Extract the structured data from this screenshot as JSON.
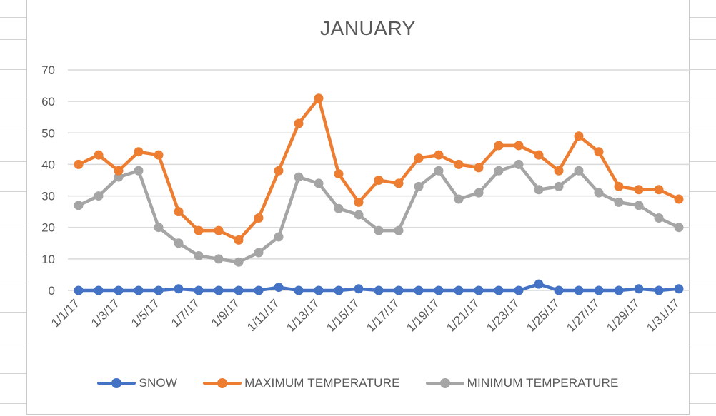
{
  "colors": {
    "snow": "#4472C4",
    "max_temp": "#ED7D31",
    "min_temp": "#A5A5A5",
    "gridline": "#D9D9D9",
    "text": "#595959"
  },
  "chart_data": {
    "type": "line",
    "title": "JANUARY",
    "xlabel": "",
    "ylabel": "",
    "ylim": [
      0,
      70
    ],
    "yticks": [
      0,
      10,
      20,
      30,
      40,
      50,
      60,
      70
    ],
    "grid": true,
    "legend_position": "bottom",
    "x": [
      "1/1/17",
      "1/2/17",
      "1/3/17",
      "1/4/17",
      "1/5/17",
      "1/6/17",
      "1/7/17",
      "1/8/17",
      "1/9/17",
      "1/10/17",
      "1/11/17",
      "1/12/17",
      "1/13/17",
      "1/14/17",
      "1/15/17",
      "1/16/17",
      "1/17/17",
      "1/18/17",
      "1/19/17",
      "1/20/17",
      "1/21/17",
      "1/22/17",
      "1/23/17",
      "1/24/17",
      "1/25/17",
      "1/26/17",
      "1/27/17",
      "1/28/17",
      "1/29/17",
      "1/30/17",
      "1/31/17"
    ],
    "x_tick_labels": [
      "1/1/17",
      "1/3/17",
      "1/5/17",
      "1/7/17",
      "1/9/17",
      "1/11/17",
      "1/13/17",
      "1/15/17",
      "1/17/17",
      "1/19/17",
      "1/21/17",
      "1/23/17",
      "1/25/17",
      "1/27/17",
      "1/29/17",
      "1/31/17"
    ],
    "series": [
      {
        "name": "SNOW",
        "color": "#4472C4",
        "values": [
          0,
          0,
          0,
          0,
          0,
          0.5,
          0,
          0,
          0,
          0,
          1,
          0,
          0,
          0,
          0.5,
          0,
          0,
          0,
          0,
          0,
          0,
          0,
          0,
          2,
          0,
          0,
          0,
          0,
          0.5,
          0,
          0.5
        ]
      },
      {
        "name": "MAXIMUM TEMPERATURE",
        "color": "#ED7D31",
        "values": [
          40,
          43,
          38,
          44,
          43,
          25,
          19,
          19,
          16,
          23,
          38,
          53,
          61,
          37,
          28,
          35,
          34,
          42,
          43,
          40,
          39,
          46,
          46,
          43,
          38,
          49,
          44,
          33,
          32,
          32,
          29
        ]
      },
      {
        "name": "MINIMUM TEMPERATURE",
        "color": "#A5A5A5",
        "values": [
          27,
          30,
          36,
          38,
          20,
          15,
          11,
          10,
          9,
          12,
          17,
          36,
          34,
          26,
          24,
          19,
          19,
          33,
          38,
          29,
          31,
          38,
          40,
          32,
          33,
          38,
          31,
          28,
          27,
          23,
          20
        ]
      }
    ]
  }
}
